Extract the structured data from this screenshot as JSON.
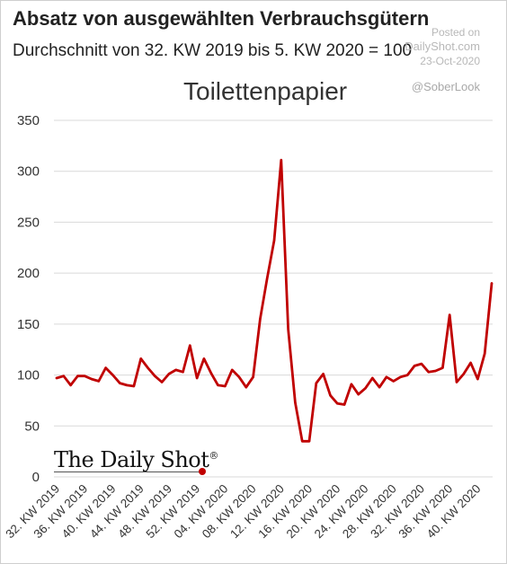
{
  "header": {
    "title": "Absatz von ausgewählten Verbrauchsgütern",
    "subtitle": "Durchschnitt von 32. KW 2019 bis 5. KW 2020 = 100"
  },
  "watermark": {
    "posted_label": "Posted on",
    "source": "DailyShot.com",
    "date": "23-Oct-2020",
    "handle": "@SoberLook"
  },
  "brand": {
    "name": "The Daily Shot",
    "mark": "®"
  },
  "colors": {
    "line": "#c00000",
    "grid": "#d9d9d9",
    "text": "#222222"
  },
  "chart_data": {
    "type": "line",
    "title": "Toilettenpapier",
    "xlabel": "",
    "ylabel": "",
    "ylim": [
      0,
      350
    ],
    "yticks": [
      0,
      50,
      100,
      150,
      200,
      250,
      300,
      350
    ],
    "grid": "horizontal",
    "xtick_labels": [
      "32. KW 2019",
      "36. KW 2019",
      "40. KW 2019",
      "44. KW 2019",
      "48. KW 2019",
      "52. KW 2019",
      "04. KW 2020",
      "08. KW 2020",
      "12. KW 2020",
      "16. KW 2020",
      "20. KW 2020",
      "24. KW 2020",
      "28. KW 2020",
      "32. KW 2020",
      "36. KW 2020",
      "40. KW 2020"
    ],
    "series": [
      {
        "values": [
          97,
          99,
          90,
          99,
          99,
          96,
          94,
          107,
          100,
          92,
          90,
          89,
          116,
          107,
          99,
          93,
          101,
          105,
          103,
          129,
          97,
          116,
          102,
          90,
          89,
          105,
          98,
          88,
          98,
          155,
          195,
          232,
          311,
          145,
          73,
          35,
          35,
          92,
          101,
          80,
          72,
          71,
          91,
          81,
          87,
          97,
          88,
          98,
          94,
          98,
          100,
          109,
          111,
          103,
          104,
          107,
          159,
          93,
          101,
          112,
          96,
          121,
          190
        ]
      }
    ]
  }
}
